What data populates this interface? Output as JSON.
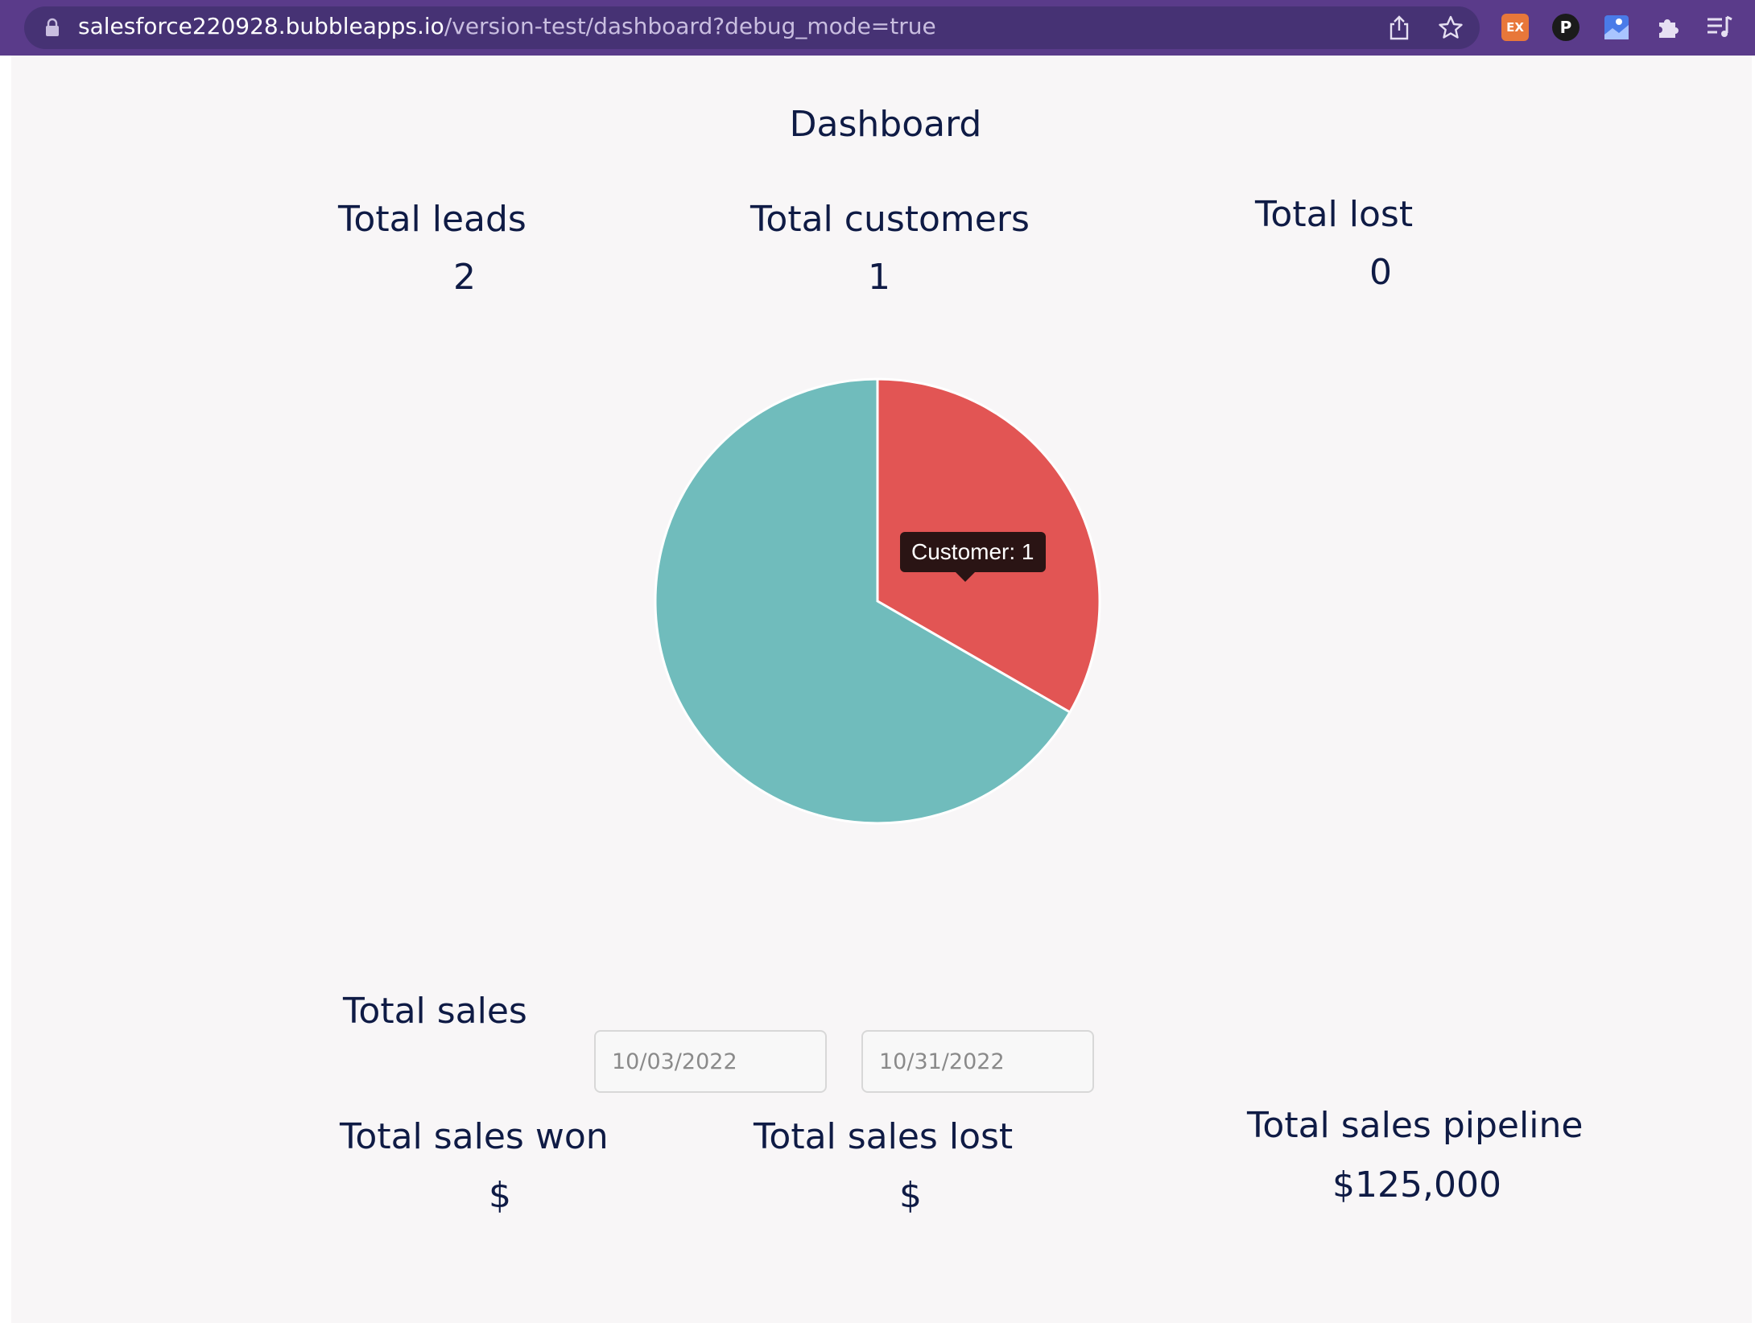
{
  "browser": {
    "url_host": "salesforce220928.bubbleapps.io",
    "url_path": "/version-test/dashboard?debug_mode=true",
    "extensions": [
      "share-icon",
      "star-icon",
      "ex-extension-icon",
      "p-extension-icon",
      "blue-extension-icon",
      "puzzle-icon",
      "reading-list-icon"
    ],
    "ex_badge_label": "EX",
    "p_badge_label": "P"
  },
  "page": {
    "title": "Dashboard",
    "stats_top": {
      "leads_label": "Total leads",
      "leads_value": "2",
      "customers_label": "Total customers",
      "customers_value": "1",
      "lost_label": "Total lost",
      "lost_value": "0"
    },
    "sales": {
      "label": "Total sales",
      "start_date_placeholder": "10/03/2022",
      "end_date_placeholder": "10/31/2022"
    },
    "stats_bottom": {
      "won_label": "Total sales won",
      "won_value": "$",
      "lost_label": "Total sales lost",
      "lost_value": "$",
      "pipeline_label": "Total sales pipeline",
      "pipeline_value": "$125,000"
    },
    "tooltip": "Customer: 1"
  },
  "chart_data": {
    "type": "pie",
    "slices": [
      {
        "name": "Customer",
        "value": 1,
        "color": "#e25554"
      },
      {
        "value": 2,
        "color": "#70bcbc"
      }
    ],
    "start_angle_deg": -90,
    "tooltip": "Customer: 1"
  }
}
